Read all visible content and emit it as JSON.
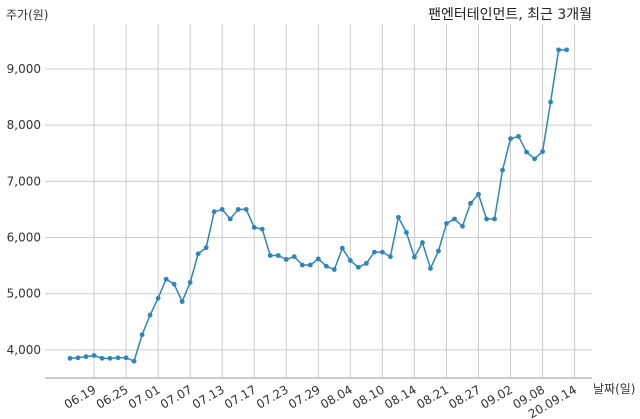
{
  "chart_data": {
    "type": "line",
    "title": "팬엔터테인먼트, 최근 3개월",
    "ylabel": "주가(원)",
    "xlabel": "날짜(일)",
    "ylim": [
      3500,
      9800
    ],
    "yticks": [
      4000,
      5000,
      6000,
      7000,
      8000,
      9000
    ],
    "ytick_labels": [
      "4,000",
      "5,000",
      "6,000",
      "7,000",
      "8,000",
      "9,000"
    ],
    "xtick_labels": [
      "06.19",
      "06.25",
      "07.01",
      "07.07",
      "07.13",
      "07.17",
      "07.23",
      "07.29",
      "08.04",
      "08.10",
      "08.14",
      "08.21",
      "08.27",
      "09.02",
      "09.08",
      "20.09.14"
    ],
    "xtick_index": [
      3,
      7,
      11,
      15,
      19,
      23,
      27,
      31,
      35,
      39,
      43,
      47,
      51,
      55,
      59,
      63
    ],
    "grid": true,
    "line_color": "#2e86b8",
    "series": [
      {
        "values": [
          3850,
          3860,
          3880,
          3900,
          3850,
          3850,
          3860,
          3860,
          3800,
          4270,
          4620,
          4920,
          5260,
          5170,
          4860,
          5200,
          5710,
          5820,
          6460,
          6500,
          6330,
          6500,
          6500,
          6180,
          6150,
          5680,
          5680,
          5610,
          5660,
          5510,
          5510,
          5620,
          5490,
          5430,
          5810,
          5590,
          5470,
          5540,
          5740,
          5740,
          5660,
          6360,
          6090,
          5650,
          5910,
          5450,
          5760,
          6250,
          6330,
          6200,
          6610,
          6770,
          6330,
          6330,
          7200,
          7760,
          7800,
          7520,
          7400,
          7530,
          8410,
          9340,
          9340
        ]
      }
    ]
  }
}
